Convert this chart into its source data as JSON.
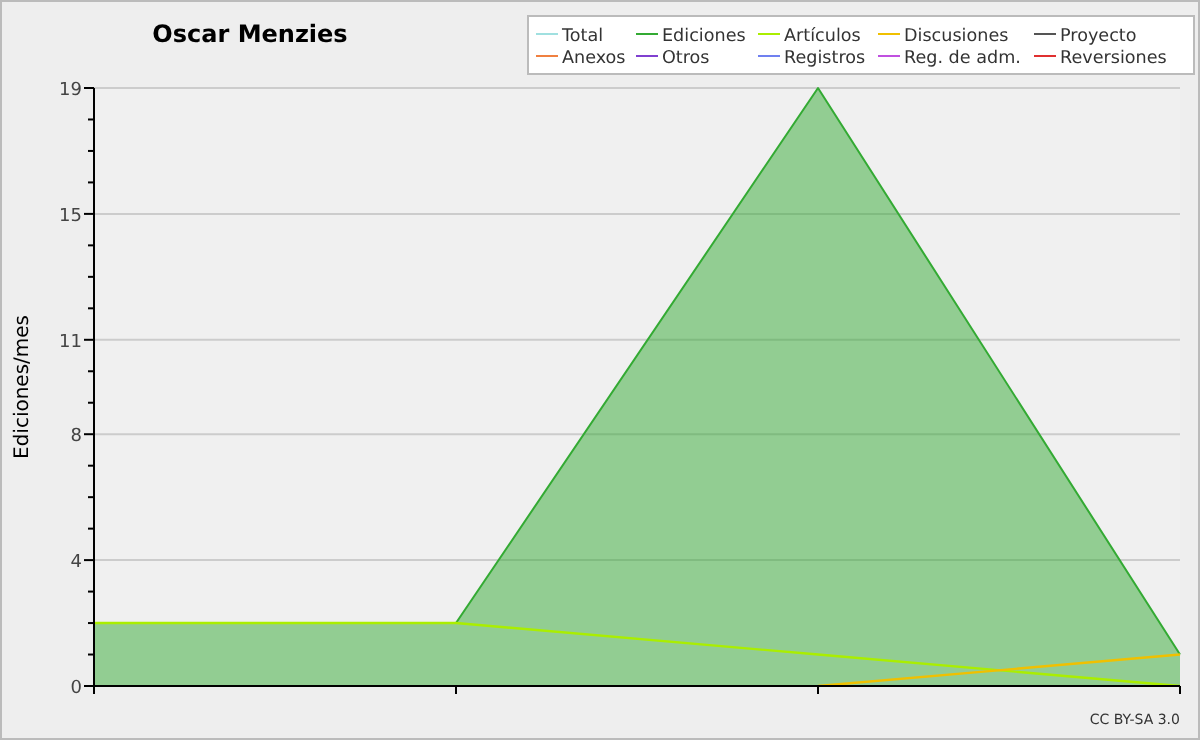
{
  "chart_data": {
    "type": "line",
    "title": "Oscar Menzies",
    "ylabel": "Ediciones/mes",
    "categories": [
      null,
      null,
      null,
      null
    ],
    "series": [
      {
        "name": "Total",
        "color": "#a0e0e0",
        "values": [
          null,
          null,
          null,
          null
        ]
      },
      {
        "name": "Ediciones",
        "type": "area",
        "color": "#33aa33",
        "values": [
          2,
          2,
          19,
          1
        ]
      },
      {
        "name": "Artículos",
        "color": "#aaee00",
        "values": [
          2,
          2,
          1,
          0
        ]
      },
      {
        "name": "Discusiones",
        "color": "#f0c000",
        "values": [
          null,
          null,
          0,
          1
        ]
      },
      {
        "name": "Proyecto",
        "color": "#555555",
        "values": [
          null,
          null,
          null,
          null
        ]
      },
      {
        "name": "Anexos",
        "color": "#f08040",
        "values": [
          null,
          null,
          null,
          null
        ]
      },
      {
        "name": "Otros",
        "color": "#8040d0",
        "values": [
          null,
          null,
          null,
          null
        ]
      },
      {
        "name": "Registros",
        "color": "#7080f0",
        "values": [
          null,
          null,
          null,
          null
        ]
      },
      {
        "name": "Reg. de adm.",
        "color": "#c050e0",
        "values": [
          null,
          null,
          null,
          null
        ]
      },
      {
        "name": "Reversiones",
        "color": "#e03030",
        "values": [
          null,
          null,
          null,
          null
        ]
      }
    ],
    "ylim": [
      0,
      19
    ],
    "yticks": [
      0,
      {
        "value": 1,
        "label": null
      },
      {
        "value": 2,
        "label": null
      },
      {
        "value": 3,
        "label": null
      },
      4,
      {
        "value": 5,
        "label": null
      },
      {
        "value": 6,
        "label": null
      },
      {
        "value": 7,
        "label": null
      },
      8,
      {
        "value": 9,
        "label": null
      },
      {
        "value": 10,
        "label": null
      },
      11,
      {
        "value": 12,
        "label": null
      },
      {
        "value": 13,
        "label": null
      },
      {
        "value": 14,
        "label": null
      },
      15,
      {
        "value": 16,
        "label": null
      },
      {
        "value": 17,
        "label": null
      },
      {
        "value": 18,
        "label": null
      },
      19
    ],
    "grid": "y",
    "legend": "top right",
    "marker": "none",
    "line_style": "solid",
    "annotations": [
      "CC BY-SA 3.0"
    ]
  }
}
